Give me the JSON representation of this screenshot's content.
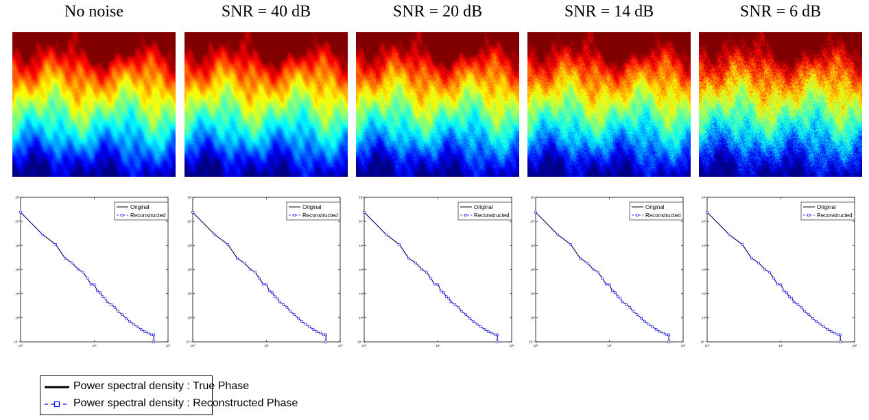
{
  "panels": [
    {
      "title": "No noise"
    },
    {
      "title": "SNR = 40 dB"
    },
    {
      "title": "SNR = 20 dB"
    },
    {
      "title": "SNR = 14 dB"
    },
    {
      "title": "SNR = 6 dB"
    }
  ],
  "inner_legend": {
    "original": "Original",
    "reconstructed": "Reconstructed"
  },
  "legend": {
    "true_phase": "Power spectral density : True Phase",
    "reconstructed_phase": "Power spectral density : Reconstructed Phase"
  },
  "colors": {
    "original": "#000000",
    "reconstructed": "#0000ff"
  },
  "chart_data": {
    "type": "line",
    "xscale": "log",
    "yscale": "log",
    "xlim": [
      1,
      100
    ],
    "ylim": [
      0.1,
      100000
    ],
    "xticklabels": [
      "10⁰",
      "10¹",
      "10²"
    ],
    "yticklabels": [
      "10⁻¹",
      "10⁰",
      "10¹",
      "10²",
      "10³",
      "10⁴",
      "10⁵"
    ],
    "series": [
      {
        "name": "Original",
        "x": [
          1,
          2,
          3,
          4,
          5,
          6,
          7,
          8,
          9,
          10,
          11,
          12,
          13,
          14,
          15,
          17,
          19,
          21,
          24,
          27,
          30,
          34,
          38,
          43,
          48,
          54,
          60,
          64,
          64
        ],
        "y": [
          24000,
          2800,
          1100,
          300,
          190,
          105,
          78,
          44,
          25,
          24,
          13,
          11,
          7.5,
          6.5,
          4.6,
          3.6,
          2.7,
          1.85,
          1.35,
          0.95,
          0.72,
          0.55,
          0.43,
          0.33,
          0.27,
          0.23,
          0.2,
          0.2,
          0.1
        ]
      },
      {
        "name": "Reconstructed",
        "x": [
          1,
          2,
          3,
          4,
          5,
          6,
          7,
          8,
          9,
          10,
          11,
          12,
          13,
          14,
          15,
          17,
          19,
          21,
          24,
          27,
          30,
          34,
          38,
          43,
          48,
          54,
          60,
          64,
          64
        ],
        "y": [
          24000,
          2800,
          1100,
          300,
          190,
          105,
          78,
          44,
          25,
          24,
          13,
          11,
          7.5,
          6.5,
          4.6,
          3.6,
          2.7,
          1.85,
          1.35,
          0.95,
          0.72,
          0.55,
          0.43,
          0.33,
          0.27,
          0.23,
          0.2,
          0.2,
          0.1
        ]
      }
    ]
  }
}
